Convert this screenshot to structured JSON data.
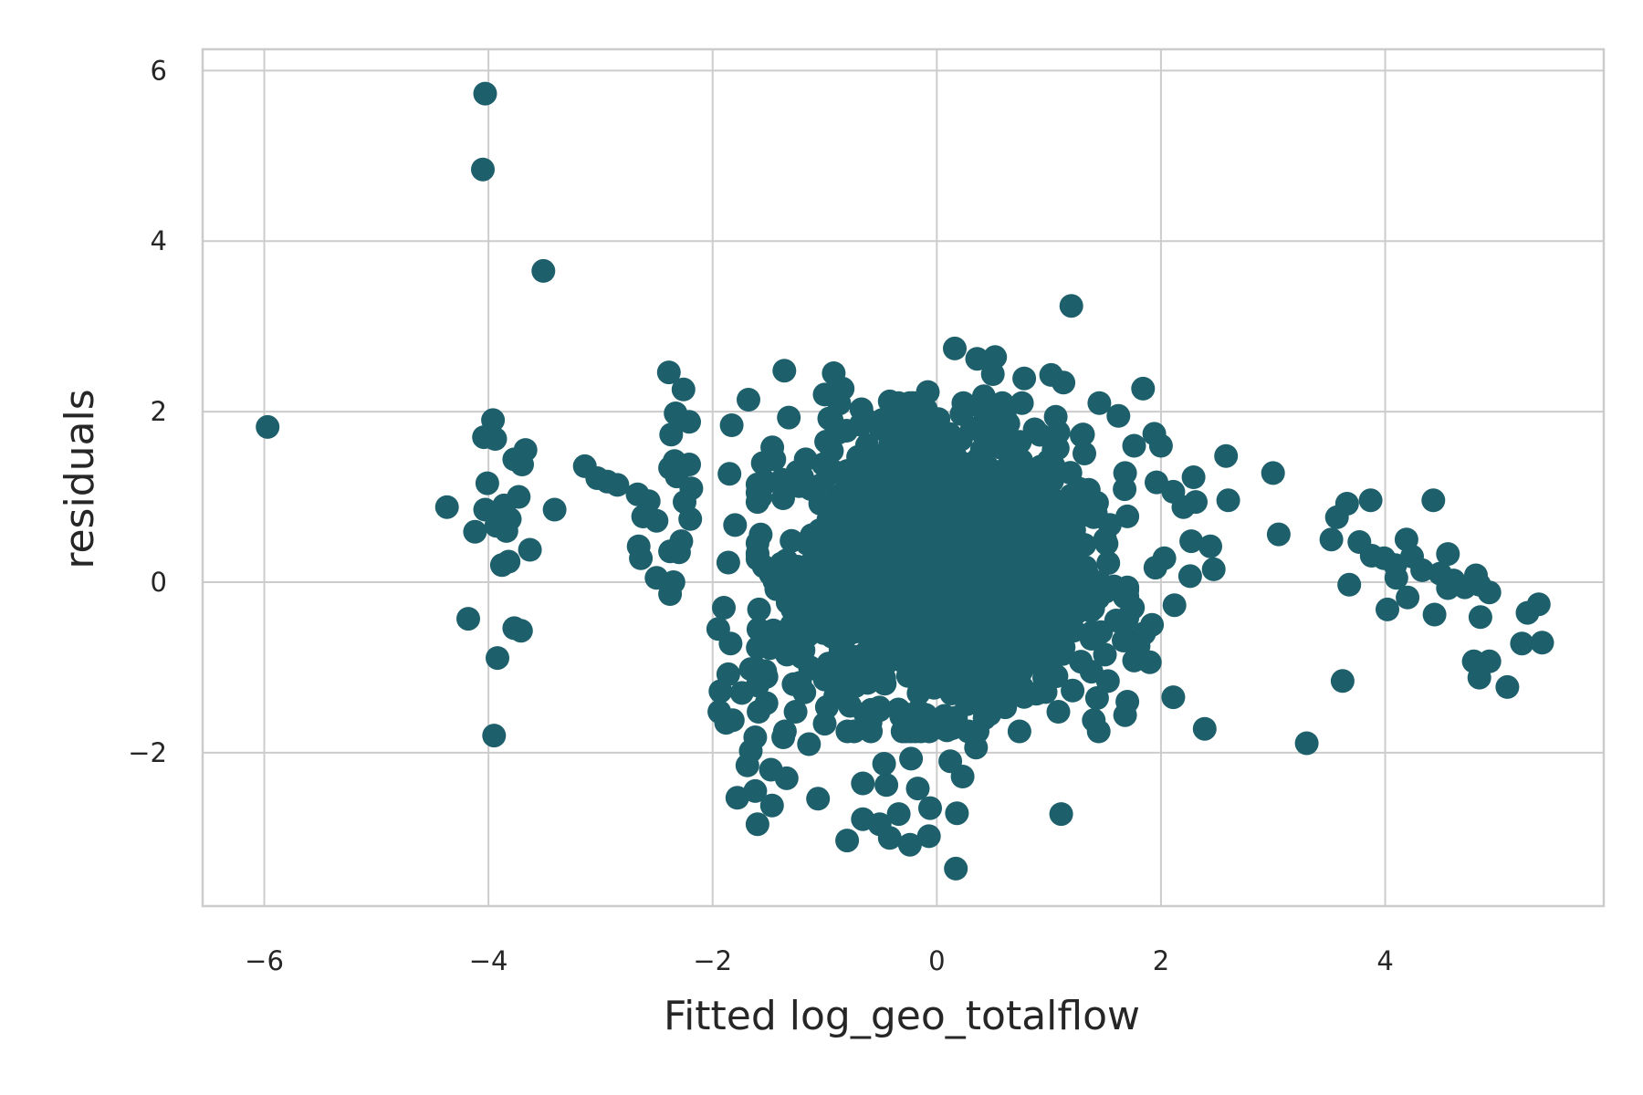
{
  "chart_data": {
    "type": "scatter",
    "xlabel": "Fitted log_geo_totalflow",
    "ylabel": "residuals",
    "xlim": [
      -6.55,
      5.95
    ],
    "ylim": [
      -3.8,
      6.25
    ],
    "xticks": [
      -6,
      -4,
      -2,
      0,
      2,
      4
    ],
    "yticks": [
      -2,
      0,
      2,
      4,
      6
    ],
    "grid": true,
    "point_color": "#1d5f6a",
    "series": [
      {
        "points": [
          [
            -5.97,
            1.82
          ],
          [
            -4.03,
            5.73
          ],
          [
            -4.05,
            4.84
          ],
          [
            -3.51,
            3.65
          ],
          [
            -4.37,
            0.88
          ],
          [
            -4.18,
            -0.43
          ],
          [
            -4.01,
            1.16
          ],
          [
            -3.96,
            1.9
          ],
          [
            -4.04,
            1.7
          ],
          [
            -3.94,
            1.68
          ],
          [
            -4.03,
            0.85
          ],
          [
            -3.93,
            0.66
          ],
          [
            -4.12,
            0.59
          ],
          [
            -3.86,
            0.9
          ],
          [
            -3.81,
            0.74
          ],
          [
            -3.73,
            1.0
          ],
          [
            -3.67,
            1.55
          ],
          [
            -3.7,
            1.38
          ],
          [
            -3.77,
            1.44
          ],
          [
            -3.84,
            0.6
          ],
          [
            -3.88,
            0.2
          ],
          [
            -3.82,
            0.24
          ],
          [
            -3.63,
            0.38
          ],
          [
            -3.41,
            0.85
          ],
          [
            -3.77,
            -0.54
          ],
          [
            -3.71,
            -0.57
          ],
          [
            -3.92,
            -0.89
          ],
          [
            -3.95,
            -1.8
          ],
          [
            -3.14,
            1.36
          ],
          [
            -3.03,
            1.22
          ],
          [
            -2.94,
            1.18
          ],
          [
            -2.85,
            1.14
          ],
          [
            -2.67,
            1.03
          ],
          [
            -2.57,
            0.95
          ],
          [
            -2.62,
            0.77
          ],
          [
            -2.5,
            0.72
          ],
          [
            -2.66,
            0.42
          ],
          [
            -2.64,
            0.28
          ],
          [
            -2.5,
            0.05
          ],
          [
            -2.35,
            0.0
          ],
          [
            -2.38,
            -0.14
          ],
          [
            -2.39,
            2.46
          ],
          [
            -2.26,
            2.26
          ],
          [
            -2.33,
            1.98
          ],
          [
            -2.21,
            1.88
          ],
          [
            -2.37,
            1.73
          ],
          [
            -2.34,
            1.42
          ],
          [
            -2.38,
            1.34
          ],
          [
            -2.21,
            1.38
          ],
          [
            -2.32,
            1.24
          ],
          [
            -2.19,
            1.1
          ],
          [
            -2.25,
            0.94
          ],
          [
            -2.2,
            0.74
          ],
          [
            -2.28,
            0.48
          ],
          [
            -2.3,
            0.35
          ],
          [
            -2.38,
            0.36
          ],
          [
            -1.68,
            2.14
          ],
          [
            -1.83,
            1.84
          ],
          [
            -1.85,
            1.27
          ],
          [
            -1.8,
            0.67
          ],
          [
            -1.86,
            0.23
          ],
          [
            -1.9,
            -0.3
          ],
          [
            -1.95,
            -0.55
          ],
          [
            -1.84,
            -0.72
          ],
          [
            -1.86,
            -1.08
          ],
          [
            -1.93,
            -1.28
          ],
          [
            -1.94,
            -1.52
          ],
          [
            -1.88,
            -1.65
          ],
          [
            -1.82,
            -1.62
          ],
          [
            -1.74,
            -1.3
          ],
          [
            -1.66,
            -1.02
          ],
          [
            -1.59,
            -1.52
          ],
          [
            -1.52,
            -1.42
          ],
          [
            -1.62,
            -1.82
          ],
          [
            -1.66,
            -1.98
          ],
          [
            -1.69,
            -2.15
          ],
          [
            -1.78,
            -2.53
          ],
          [
            -1.62,
            -2.45
          ],
          [
            -1.47,
            -2.62
          ],
          [
            -1.6,
            -2.84
          ],
          [
            -1.52,
            -1.11
          ],
          [
            -1.36,
            2.48
          ],
          [
            -1.32,
            1.93
          ],
          [
            -1.45,
            1.44
          ],
          [
            -1.38,
            1.2
          ],
          [
            -1.52,
            1.17
          ],
          [
            -0.92,
            2.45
          ],
          [
            -0.84,
            2.27
          ],
          [
            -1.0,
            2.2
          ],
          [
            -0.96,
            1.92
          ],
          [
            -0.88,
            1.75
          ],
          [
            -1.17,
            1.44
          ],
          [
            -1.3,
            -0.73
          ],
          [
            -1.22,
            -1.18
          ],
          [
            -1.26,
            -1.52
          ],
          [
            -1.37,
            -1.82
          ],
          [
            -1.48,
            -2.2
          ],
          [
            -1.34,
            -2.3
          ],
          [
            -1.06,
            -2.54
          ],
          [
            -1.14,
            -1.9
          ],
          [
            -1.0,
            -1.66
          ],
          [
            -0.8,
            -3.03
          ],
          [
            -0.66,
            -2.78
          ],
          [
            -0.51,
            -2.84
          ],
          [
            -0.42,
            -3.0
          ],
          [
            -0.34,
            -2.72
          ],
          [
            -0.24,
            -3.08
          ],
          [
            -0.07,
            -2.98
          ],
          [
            -0.06,
            -2.65
          ],
          [
            -0.17,
            -2.42
          ],
          [
            -0.45,
            -2.38
          ],
          [
            -0.66,
            -2.36
          ],
          [
            -0.47,
            -2.13
          ],
          [
            -0.23,
            -2.07
          ],
          [
            0.18,
            -2.71
          ],
          [
            0.17,
            -3.36
          ],
          [
            0.23,
            -2.28
          ],
          [
            0.12,
            -2.1
          ],
          [
            0.35,
            -1.94
          ],
          [
            1.11,
            -2.72
          ],
          [
            0.47,
            -1.55
          ],
          [
            0.16,
            2.74
          ],
          [
            0.36,
            2.62
          ],
          [
            0.52,
            2.64
          ],
          [
            0.5,
            2.44
          ],
          [
            0.78,
            2.39
          ],
          [
            1.02,
            2.43
          ],
          [
            1.13,
            2.34
          ],
          [
            1.2,
            3.24
          ],
          [
            0.42,
            2.18
          ],
          [
            -0.42,
            2.12
          ],
          [
            -0.3,
            1.98
          ],
          [
            -0.08,
            2.23
          ],
          [
            1.45,
            2.1
          ],
          [
            1.62,
            1.95
          ],
          [
            1.84,
            2.27
          ],
          [
            1.76,
            1.6
          ],
          [
            1.94,
            1.74
          ],
          [
            2.0,
            1.6
          ],
          [
            1.68,
            1.28
          ],
          [
            1.96,
            1.17
          ],
          [
            2.11,
            1.06
          ],
          [
            2.29,
            1.23
          ],
          [
            2.2,
            0.88
          ],
          [
            2.31,
            0.94
          ],
          [
            2.58,
            1.48
          ],
          [
            2.6,
            0.96
          ],
          [
            2.27,
            0.48
          ],
          [
            2.44,
            0.42
          ],
          [
            2.03,
            0.28
          ],
          [
            1.95,
            0.17
          ],
          [
            2.26,
            0.07
          ],
          [
            2.47,
            0.15
          ],
          [
            2.12,
            -0.27
          ],
          [
            1.85,
            -0.6
          ],
          [
            1.92,
            -0.5
          ],
          [
            1.8,
            -0.75
          ],
          [
            1.76,
            -0.92
          ],
          [
            1.9,
            -0.94
          ],
          [
            1.6,
            -0.45
          ],
          [
            1.5,
            -0.85
          ],
          [
            1.38,
            -1.05
          ],
          [
            1.43,
            -1.36
          ],
          [
            1.4,
            -1.62
          ],
          [
            1.68,
            -1.56
          ],
          [
            2.11,
            -1.35
          ],
          [
            2.39,
            -1.72
          ],
          [
            1.75,
            -0.3
          ],
          [
            1.58,
            -0.05
          ],
          [
            3.0,
            1.28
          ],
          [
            3.05,
            0.56
          ],
          [
            3.52,
            0.5
          ],
          [
            3.57,
            0.76
          ],
          [
            3.66,
            0.92
          ],
          [
            3.87,
            0.96
          ],
          [
            3.77,
            0.47
          ],
          [
            3.88,
            0.31
          ],
          [
            3.99,
            0.28
          ],
          [
            4.09,
            0.2
          ],
          [
            4.19,
            0.5
          ],
          [
            4.24,
            0.3
          ],
          [
            4.33,
            0.14
          ],
          [
            4.43,
            0.96
          ],
          [
            4.56,
            0.33
          ],
          [
            4.49,
            0.1
          ],
          [
            4.61,
            0.02
          ],
          [
            4.71,
            -0.06
          ],
          [
            4.81,
            0.08
          ],
          [
            4.93,
            -0.12
          ],
          [
            4.84,
            -0.03
          ],
          [
            4.56,
            -0.07
          ],
          [
            4.1,
            0.05
          ],
          [
            4.2,
            -0.18
          ],
          [
            4.02,
            -0.32
          ],
          [
            4.44,
            -0.38
          ],
          [
            4.85,
            -0.41
          ],
          [
            5.27,
            -0.36
          ],
          [
            5.37,
            -0.26
          ],
          [
            5.4,
            -0.71
          ],
          [
            5.22,
            -0.72
          ],
          [
            3.68,
            -0.03
          ],
          [
            3.62,
            -1.16
          ],
          [
            3.3,
            -1.89
          ],
          [
            4.79,
            -0.93
          ],
          [
            4.93,
            -0.93
          ],
          [
            4.84,
            -1.12
          ],
          [
            5.09,
            -1.23
          ]
        ]
      }
    ]
  }
}
